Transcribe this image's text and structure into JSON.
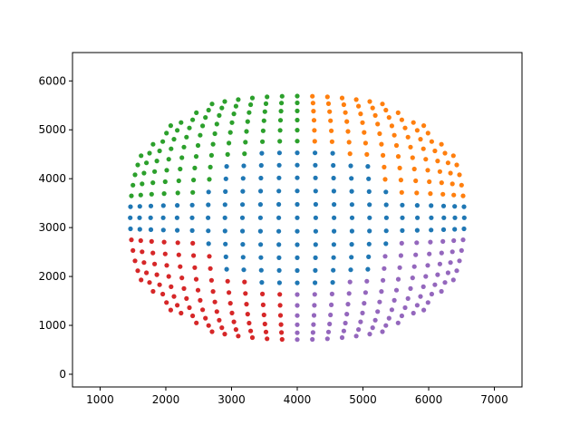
{
  "chart_data": {
    "type": "scatter",
    "title": "",
    "xlabel": "",
    "ylabel": "",
    "xlim": [
      580,
      7420
    ],
    "ylim": [
      -260,
      6580
    ],
    "xticks": [
      1000,
      2000,
      3000,
      4000,
      5000,
      6000,
      7000
    ],
    "yticks": [
      0,
      1000,
      2000,
      3000,
      4000,
      5000,
      6000
    ],
    "xtick_labels": [
      "1000",
      "2000",
      "3000",
      "4000",
      "5000",
      "6000",
      "7000"
    ],
    "ytick_labels": [
      "0",
      "1000",
      "2000",
      "3000",
      "4000",
      "5000",
      "6000"
    ],
    "grid": false,
    "legend": "none",
    "center": [
      4000,
      3200
    ],
    "series": [
      {
        "color": "#1f77b4",
        "region": "center",
        "angle_range": [
          0,
          360
        ],
        "radius_range": [
          0,
          0.62
        ]
      },
      {
        "color": "#ff7f0e",
        "region": "upper-right",
        "angle_range": [
          10,
          90
        ],
        "radius_range": [
          0.45,
          1.0
        ]
      },
      {
        "color": "#2ca02c",
        "region": "upper-left",
        "angle_range": [
          90,
          170
        ],
        "radius_range": [
          0.45,
          1.0
        ]
      },
      {
        "color": "#d62728",
        "region": "lower-left",
        "angle_range": [
          190,
          270
        ],
        "radius_range": [
          0.45,
          1.0
        ]
      },
      {
        "color": "#9467bd",
        "region": "lower-right",
        "angle_range": [
          270,
          350
        ],
        "radius_range": [
          0.45,
          1.0
        ]
      }
    ]
  }
}
